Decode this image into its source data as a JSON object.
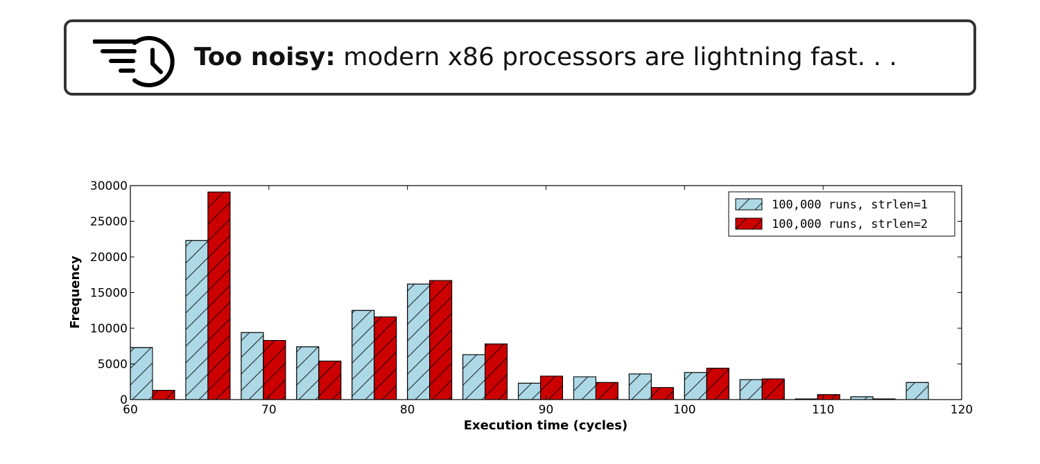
{
  "banner": {
    "icon": "fast-clock-icon",
    "strong": "Too noisy:",
    "text": "modern x86 processors are lightning fast. . ."
  },
  "chart_data": {
    "type": "bar",
    "xlabel": "Execution time (cycles)",
    "ylabel": "Frequency",
    "xlim": [
      60,
      120
    ],
    "ylim": [
      0,
      30000
    ],
    "xticks": [
      "60",
      "70",
      "80",
      "90",
      "100",
      "110",
      "120"
    ],
    "yticks": [
      "0",
      "5000",
      "10000",
      "15000",
      "20000",
      "25000",
      "30000"
    ],
    "bin_edges": [
      60,
      64,
      68,
      72,
      76,
      80,
      84,
      88,
      92,
      96,
      100,
      104,
      108,
      112,
      116,
      120
    ],
    "grid": false,
    "legend_position": "top-right",
    "series": [
      {
        "name": "100,000 runs, strlen=1",
        "color": "#add8e6",
        "hatch": "/",
        "values": [
          7300,
          22300,
          9400,
          7400,
          12500,
          16200,
          6300,
          2300,
          3200,
          3600,
          3800,
          2800,
          100,
          400,
          2400
        ]
      },
      {
        "name": "100,000 runs, strlen=2",
        "color": "#cc0000",
        "hatch": "/",
        "values": [
          1300,
          29100,
          8300,
          5400,
          11600,
          16700,
          7800,
          3300,
          2400,
          1700,
          4400,
          2900,
          700,
          100,
          0
        ]
      }
    ]
  }
}
